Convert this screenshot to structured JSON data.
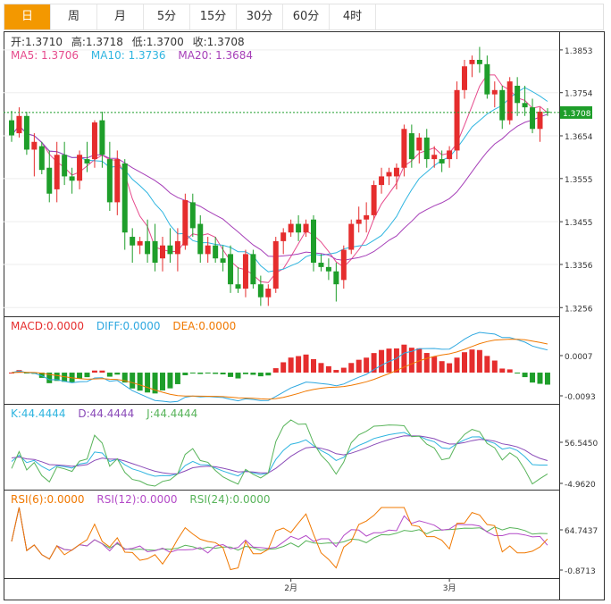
{
  "tabs": [
    {
      "label": "日",
      "active": true
    },
    {
      "label": "周",
      "active": false
    },
    {
      "label": "月",
      "active": false
    },
    {
      "label": "5分",
      "active": false
    },
    {
      "label": "15分",
      "active": false
    },
    {
      "label": "30分",
      "active": false
    },
    {
      "label": "60分",
      "active": false
    },
    {
      "label": "4时",
      "active": false
    }
  ],
  "ohlc_info": {
    "open": "开:1.3710",
    "high": "高:1.3718",
    "low": "低:1.3700",
    "close": "收:1.3708"
  },
  "ma_info": {
    "ma5": "MA5: 1.3706",
    "ma10": "MA10: 1.3736",
    "ma20": "MA20: 1.3684"
  },
  "macd_info": {
    "macd": "MACD:0.0000",
    "diff": "DIFF:0.0000",
    "dea": "DEA:0.0000"
  },
  "kdj_info": {
    "k": "K:44.4444",
    "d": "D:44.4444",
    "j": "J:44.4444"
  },
  "rsi_info": {
    "rsi6": "RSI(6):0.0000",
    "rsi12": "RSI(12):0.0000",
    "rsi24": "RSI(24):0.0000"
  },
  "colors": {
    "up": "#e52d2d",
    "down": "#1e9e2a",
    "ma5": "#e64a8c",
    "ma10": "#2fb5e0",
    "ma20": "#a63fb8",
    "macd": "#e52d2d",
    "diff": "#2fa8e0",
    "dea": "#f07800",
    "k": "#2fb5e0",
    "d": "#8a4bb8",
    "j": "#58b45a",
    "rsi6": "#f07800",
    "rsi12": "#b44bc8",
    "rsi24": "#58b45a",
    "accent": "#f39800"
  },
  "chart_data": [
    {
      "type": "candlestick",
      "title": "",
      "y_ticks": [
        "1.3853",
        "1.3754",
        "1.3654",
        "1.3555",
        "1.3455",
        "1.3356",
        "1.3256"
      ],
      "ylim": [
        1.324,
        1.389
      ],
      "x_ticks": [
        {
          "index": 37,
          "label": "2月"
        },
        {
          "index": 58,
          "label": "3月"
        }
      ],
      "last_price": {
        "value": 1.3708,
        "label": "1.3708"
      },
      "candles": [
        [
          1.369,
          1.3712,
          1.364,
          1.3655
        ],
        [
          1.366,
          1.372,
          1.365,
          1.37
        ],
        [
          1.37,
          1.371,
          1.361,
          1.3622
        ],
        [
          1.3622,
          1.366,
          1.356,
          1.364
        ],
        [
          1.363,
          1.364,
          1.3565,
          1.3575
        ],
        [
          1.358,
          1.362,
          1.35,
          1.352
        ],
        [
          1.353,
          1.364,
          1.35,
          1.361
        ],
        [
          1.361,
          1.364,
          1.354,
          1.356
        ],
        [
          1.356,
          1.358,
          1.352,
          1.355
        ],
        [
          1.355,
          1.362,
          1.353,
          1.361
        ],
        [
          1.36,
          1.364,
          1.357,
          1.359
        ],
        [
          1.36,
          1.369,
          1.358,
          1.3685
        ],
        [
          1.369,
          1.371,
          1.358,
          1.361
        ],
        [
          1.36,
          1.364,
          1.348,
          1.35
        ],
        [
          1.35,
          1.362,
          1.347,
          1.36
        ],
        [
          1.359,
          1.36,
          1.339,
          1.343
        ],
        [
          1.342,
          1.344,
          1.336,
          1.34
        ],
        [
          1.34,
          1.342,
          1.338,
          1.341
        ],
        [
          1.341,
          1.346,
          1.336,
          1.338
        ],
        [
          1.341,
          1.345,
          1.334,
          1.336
        ],
        [
          1.337,
          1.342,
          1.334,
          1.34
        ],
        [
          1.34,
          1.344,
          1.336,
          1.338
        ],
        [
          1.338,
          1.344,
          1.334,
          1.341
        ],
        [
          1.34,
          1.352,
          1.339,
          1.3505
        ],
        [
          1.35,
          1.352,
          1.342,
          1.344
        ],
        [
          1.345,
          1.347,
          1.336,
          1.338
        ],
        [
          1.338,
          1.342,
          1.336,
          1.34
        ],
        [
          1.34,
          1.342,
          1.336,
          1.337
        ],
        [
          1.337,
          1.34,
          1.334,
          1.336
        ],
        [
          1.338,
          1.34,
          1.329,
          1.331
        ],
        [
          1.331,
          1.335,
          1.329,
          1.33
        ],
        [
          1.33,
          1.339,
          1.328,
          1.338
        ],
        [
          1.338,
          1.339,
          1.33,
          1.331
        ],
        [
          1.331,
          1.333,
          1.326,
          1.328
        ],
        [
          1.328,
          1.331,
          1.326,
          1.33
        ],
        [
          1.33,
          1.342,
          1.329,
          1.341
        ],
        [
          1.341,
          1.344,
          1.338,
          1.343
        ],
        [
          1.343,
          1.346,
          1.342,
          1.345
        ],
        [
          1.345,
          1.347,
          1.341,
          1.343
        ],
        [
          1.343,
          1.346,
          1.342,
          1.345
        ],
        [
          1.346,
          1.347,
          1.334,
          1.336
        ],
        [
          1.336,
          1.338,
          1.334,
          1.335
        ],
        [
          1.335,
          1.337,
          1.332,
          1.334
        ],
        [
          1.334,
          1.336,
          1.327,
          1.331
        ],
        [
          1.332,
          1.34,
          1.33,
          1.339
        ],
        [
          1.339,
          1.346,
          1.338,
          1.345
        ],
        [
          1.345,
          1.349,
          1.343,
          1.346
        ],
        [
          1.346,
          1.35,
          1.343,
          1.347
        ],
        [
          1.347,
          1.355,
          1.346,
          1.354
        ],
        [
          1.354,
          1.358,
          1.352,
          1.356
        ],
        [
          1.356,
          1.358,
          1.354,
          1.357
        ],
        [
          1.356,
          1.359,
          1.353,
          1.358
        ],
        [
          1.358,
          1.368,
          1.356,
          1.367
        ],
        [
          1.366,
          1.368,
          1.358,
          1.36
        ],
        [
          1.362,
          1.366,
          1.359,
          1.365
        ],
        [
          1.365,
          1.367,
          1.358,
          1.36
        ],
        [
          1.36,
          1.363,
          1.358,
          1.361
        ],
        [
          1.36,
          1.362,
          1.357,
          1.359
        ],
        [
          1.36,
          1.363,
          1.358,
          1.362
        ],
        [
          1.362,
          1.378,
          1.36,
          1.376
        ],
        [
          1.376,
          1.383,
          1.374,
          1.3815
        ],
        [
          1.382,
          1.384,
          1.379,
          1.383
        ],
        [
          1.383,
          1.386,
          1.38,
          1.382
        ],
        [
          1.382,
          1.384,
          1.374,
          1.375
        ],
        [
          1.375,
          1.378,
          1.372,
          1.376
        ],
        [
          1.376,
          1.377,
          1.367,
          1.369
        ],
        [
          1.369,
          1.379,
          1.368,
          1.378
        ],
        [
          1.377,
          1.379,
          1.37,
          1.373
        ],
        [
          1.373,
          1.377,
          1.37,
          1.372
        ],
        [
          1.372,
          1.374,
          1.366,
          1.367
        ],
        [
          1.367,
          1.372,
          1.364,
          1.371
        ],
        [
          1.371,
          1.3718,
          1.37,
          1.3708
        ]
      ]
    },
    {
      "type": "bar+line",
      "title": "MACD",
      "y_ticks": [
        "0.0007",
        "-0.0093"
      ]
    },
    {
      "type": "line",
      "title": "KDJ",
      "y_ticks": [
        "56.5450",
        "-4.9620"
      ]
    },
    {
      "type": "line",
      "title": "RSI",
      "y_ticks": [
        "64.7437",
        "-0.8713"
      ]
    }
  ]
}
